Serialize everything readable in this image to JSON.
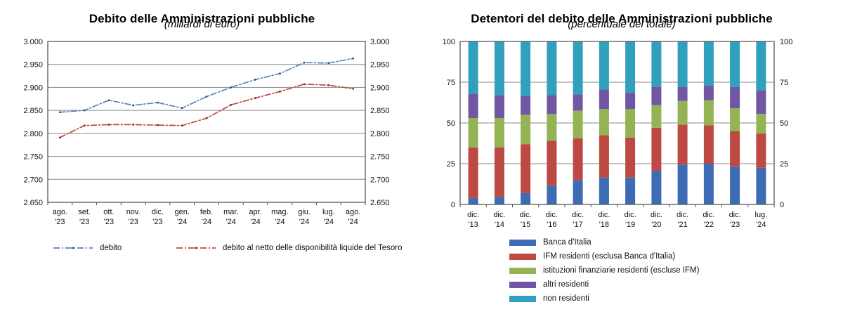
{
  "chart_data": [
    {
      "type": "line",
      "title": "Debito delle Amministrazioni pubbliche",
      "subtitle": "(miliardi di euro)",
      "x": [
        "ago. '23",
        "set. '23",
        "ott. '23",
        "nov. '23",
        "dic. '23",
        "gen. '24",
        "feb. '24",
        "mar. '24",
        "apr. '24",
        "mag. '24",
        "giu. '24",
        "lug. '24",
        "ago. '24"
      ],
      "series": [
        {
          "name": "debito",
          "color": "#5f80b5",
          "marker_color": "#2d4d7d",
          "values": [
            2846,
            2850,
            2872,
            2861,
            2867,
            2855,
            2880,
            2900,
            2917,
            2930,
            2954,
            2953,
            2963
          ]
        },
        {
          "name": "debito al netto delle disponibilità liquide del Tesoro",
          "color": "#bc4a42",
          "marker_color": "#7d2d28",
          "values": [
            2791,
            2817,
            2819,
            2819,
            2818,
            2817,
            2833,
            2862,
            2877,
            2891,
            2907,
            2905,
            2897
          ]
        }
      ],
      "ylim": [
        2650,
        3000
      ],
      "y_ticks": [
        3000,
        2950,
        2900,
        2850,
        2800,
        2750,
        2700,
        2650
      ],
      "y_tick_labels": [
        "3.000",
        "2.950",
        "2.900",
        "2.850",
        "2.800",
        "2.750",
        "2.700",
        "2.650"
      ],
      "grid": true,
      "legend_position": "bottom",
      "line_style": "dash-dot"
    },
    {
      "type": "bar",
      "stacked": true,
      "title": "Detentori del debito delle Amministrazioni pubbliche",
      "subtitle": "(percentuale del totale)",
      "categories": [
        "dic. '13",
        "dic. '14",
        "dic. '15",
        "dic. '16",
        "dic. '17",
        "dic. '18",
        "dic. '19",
        "dic. '20",
        "dic. '21",
        "dic. '22",
        "dic. '23",
        "lug. '24"
      ],
      "series": [
        {
          "name": "Banca d'Italia",
          "color": "#3c6cb4",
          "values": [
            4,
            4.5,
            7,
            11.5,
            15,
            16.5,
            16.5,
            20.5,
            24.5,
            25,
            23,
            22.5
          ]
        },
        {
          "name": "IFM residenti (esclusa Banca d'Italia)",
          "color": "#bc4a42",
          "values": [
            31,
            30.5,
            30,
            27.5,
            25.5,
            26,
            24.5,
            26.5,
            24.5,
            23.5,
            22,
            21
          ]
        },
        {
          "name": "istituzioni finanziarie residenti (escluse IFM)",
          "color": "#94b354",
          "values": [
            18,
            18,
            18,
            16.5,
            17,
            16,
            17.5,
            14,
            14.5,
            15.5,
            14,
            12
          ]
        },
        {
          "name": "altri residenti",
          "color": "#7156a3",
          "values": [
            15,
            14,
            11.5,
            11.5,
            10,
            12,
            10,
            11,
            8.5,
            9,
            13,
            14.5
          ]
        },
        {
          "name": "non residenti",
          "color": "#31a0bc",
          "values": [
            32,
            33,
            33.5,
            33,
            32.5,
            29.5,
            31.5,
            28,
            28,
            27,
            28,
            30
          ]
        }
      ],
      "ylim": [
        0,
        100
      ],
      "y_ticks": [
        0,
        25,
        50,
        75,
        100
      ],
      "y_tick_labels": [
        "0",
        "25",
        "50",
        "75",
        "100"
      ],
      "grid": true,
      "legend_position": "bottom"
    }
  ],
  "style": {
    "grid_color": "#8a8a8a",
    "border_color": "#4a4a4a",
    "tick_text_color": "#111111"
  }
}
